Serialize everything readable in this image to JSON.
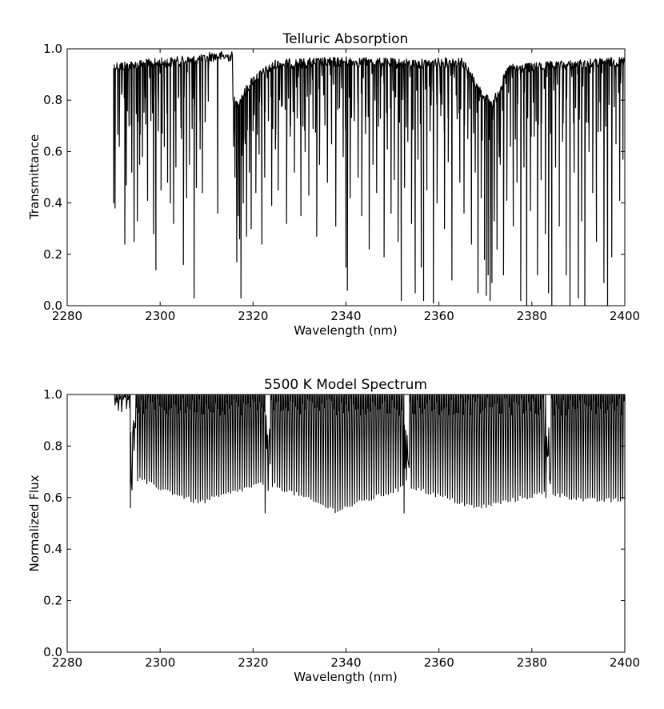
{
  "chart_data": [
    {
      "type": "line",
      "title": "Telluric Absorption",
      "xlabel": "Wavelength (nm)",
      "ylabel": "Transmittance",
      "xlim": [
        2280,
        2400
      ],
      "ylim": [
        0.0,
        1.0
      ],
      "xticks": [
        "2280",
        "2300",
        "2320",
        "2340",
        "2360",
        "2380",
        "2400"
      ],
      "yticks": [
        "0.0",
        "0.2",
        "0.4",
        "0.6",
        "0.8",
        "1.0"
      ],
      "grid": false,
      "line_color": "#000000",
      "series": [
        {
          "continuum": [
            [
              2290.0,
              0.95
            ],
            [
              2310.5,
              0.98
            ],
            [
              2316.5,
              0.8
            ],
            [
              2320.0,
              0.9
            ],
            [
              2325.0,
              0.96
            ],
            [
              2340.0,
              0.97
            ],
            [
              2355.0,
              0.96
            ],
            [
              2365.0,
              0.97
            ],
            [
              2369.0,
              0.85
            ],
            [
              2371.5,
              0.8
            ],
            [
              2375.0,
              0.94
            ],
            [
              2400.0,
              0.97
            ]
          ],
          "lines": [
            [
              2290.0,
              0.4
            ],
            [
              2290.3,
              0.38
            ],
            [
              2291.2,
              0.62
            ],
            [
              2291.8,
              0.83
            ],
            [
              2292.4,
              0.24
            ],
            [
              2292.7,
              0.47
            ],
            [
              2293.3,
              0.7
            ],
            [
              2293.9,
              0.52
            ],
            [
              2294.4,
              0.25
            ],
            [
              2295.1,
              0.33
            ],
            [
              2295.6,
              0.55
            ],
            [
              2296.2,
              0.58
            ],
            [
              2296.8,
              0.81
            ],
            [
              2297.3,
              0.41
            ],
            [
              2298.0,
              0.72
            ],
            [
              2298.6,
              0.28
            ],
            [
              2299.1,
              0.14
            ],
            [
              2299.6,
              0.68
            ],
            [
              2300.2,
              0.45
            ],
            [
              2300.9,
              0.62
            ],
            [
              2301.6,
              0.48
            ],
            [
              2302.2,
              0.4
            ],
            [
              2302.9,
              0.32
            ],
            [
              2303.4,
              0.54
            ],
            [
              2304.0,
              0.82
            ],
            [
              2304.6,
              0.65
            ],
            [
              2305.0,
              0.16
            ],
            [
              2305.7,
              0.42
            ],
            [
              2306.3,
              0.55
            ],
            [
              2306.9,
              0.69
            ],
            [
              2307.3,
              0.03
            ],
            [
              2307.8,
              0.46
            ],
            [
              2308.6,
              0.61
            ],
            [
              2309.1,
              0.44
            ],
            [
              2309.7,
              0.72
            ],
            [
              2310.4,
              0.92
            ],
            [
              2312.4,
              0.36
            ],
            [
              2315.8,
              0.62
            ],
            [
              2316.1,
              0.5
            ],
            [
              2316.5,
              0.17
            ],
            [
              2316.8,
              0.35
            ],
            [
              2317.1,
              0.26
            ],
            [
              2317.4,
              0.03
            ],
            [
              2317.9,
              0.4
            ],
            [
              2318.3,
              0.63
            ],
            [
              2318.6,
              0.27
            ],
            [
              2319.2,
              0.52
            ],
            [
              2319.6,
              0.3
            ],
            [
              2320.0,
              0.68
            ],
            [
              2320.6,
              0.44
            ],
            [
              2321.3,
              0.59
            ],
            [
              2321.9,
              0.24
            ],
            [
              2322.5,
              0.5
            ],
            [
              2323.3,
              0.72
            ],
            [
              2324.0,
              0.39
            ],
            [
              2324.8,
              0.61
            ],
            [
              2325.4,
              0.45
            ],
            [
              2326.3,
              0.78
            ],
            [
              2327.2,
              0.32
            ],
            [
              2328.0,
              0.66
            ],
            [
              2328.9,
              0.52
            ],
            [
              2329.5,
              0.73
            ],
            [
              2330.3,
              0.35
            ],
            [
              2331.2,
              0.6
            ],
            [
              2332.0,
              0.43
            ],
            [
              2332.9,
              0.69
            ],
            [
              2333.7,
              0.27
            ],
            [
              2334.3,
              0.55
            ],
            [
              2335.2,
              0.82
            ],
            [
              2336.0,
              0.48
            ],
            [
              2336.9,
              0.63
            ],
            [
              2337.8,
              0.31
            ],
            [
              2338.6,
              0.77
            ],
            [
              2339.4,
              0.58
            ],
            [
              2340.0,
              0.15
            ],
            [
              2340.3,
              0.06
            ],
            [
              2340.9,
              0.42
            ],
            [
              2341.8,
              0.72
            ],
            [
              2342.6,
              0.5
            ],
            [
              2343.4,
              0.35
            ],
            [
              2344.2,
              0.67
            ],
            [
              2345.0,
              0.22
            ],
            [
              2345.8,
              0.55
            ],
            [
              2346.6,
              0.44
            ],
            [
              2347.4,
              0.73
            ],
            [
              2348.2,
              0.19
            ],
            [
              2348.9,
              0.61
            ],
            [
              2349.7,
              0.36
            ],
            [
              2350.4,
              0.49
            ],
            [
              2351.2,
              0.25
            ],
            [
              2351.9,
              0.02
            ],
            [
              2352.6,
              0.46
            ],
            [
              2353.3,
              0.64
            ],
            [
              2354.1,
              0.32
            ],
            [
              2354.9,
              0.05
            ],
            [
              2355.5,
              0.57
            ],
            [
              2356.2,
              0.15
            ],
            [
              2356.7,
              0.02
            ],
            [
              2357.4,
              0.45
            ],
            [
              2358.1,
              0.68
            ],
            [
              2358.8,
              0.01
            ],
            [
              2359.6,
              0.4
            ],
            [
              2360.4,
              0.74
            ],
            [
              2361.2,
              0.3
            ],
            [
              2362.0,
              0.56
            ],
            [
              2362.8,
              0.1
            ],
            [
              2363.7,
              0.82
            ],
            [
              2364.5,
              0.48
            ],
            [
              2365.4,
              0.36
            ],
            [
              2366.2,
              0.65
            ],
            [
              2367.0,
              0.24
            ],
            [
              2367.8,
              0.52
            ],
            [
              2368.4,
              0.05
            ],
            [
              2369.1,
              0.42
            ],
            [
              2369.8,
              0.18
            ],
            [
              2370.2,
              0.04
            ],
            [
              2370.6,
              0.12
            ],
            [
              2371.0,
              0.02
            ],
            [
              2371.4,
              0.09
            ],
            [
              2371.9,
              0.33
            ],
            [
              2372.5,
              0.22
            ],
            [
              2373.2,
              0.55
            ],
            [
              2373.9,
              0.12
            ],
            [
              2374.6,
              0.41
            ],
            [
              2375.4,
              0.62
            ],
            [
              2376.0,
              0.31
            ],
            [
              2376.8,
              0.48
            ],
            [
              2377.6,
              0.02
            ],
            [
              2378.3,
              0.54
            ],
            [
              2378.9,
              0.0
            ],
            [
              2379.7,
              0.37
            ],
            [
              2380.5,
              0.66
            ],
            [
              2381.2,
              0.12
            ],
            [
              2382.0,
              0.49
            ],
            [
              2382.9,
              0.28
            ],
            [
              2383.6,
              0.05
            ],
            [
              2384.3,
              0.0
            ],
            [
              2385.1,
              0.54
            ],
            [
              2385.9,
              0.31
            ],
            [
              2386.6,
              0.64
            ],
            [
              2387.4,
              0.12
            ],
            [
              2388.2,
              0.0
            ],
            [
              2389.1,
              0.52
            ],
            [
              2390.0,
              0.03
            ],
            [
              2390.7,
              0.33
            ],
            [
              2391.4,
              0.0
            ],
            [
              2392.3,
              0.6
            ],
            [
              2393.1,
              0.44
            ],
            [
              2393.9,
              0.25
            ],
            [
              2394.8,
              0.68
            ],
            [
              2395.5,
              0.09
            ],
            [
              2396.3,
              0.0
            ],
            [
              2397.2,
              0.19
            ],
            [
              2398.1,
              0.63
            ],
            [
              2398.9,
              0.41
            ],
            [
              2399.6,
              0.57
            ]
          ]
        }
      ]
    },
    {
      "type": "line",
      "title": "5500 K Model Spectrum",
      "xlabel": "Wavelength (nm)",
      "ylabel": "Normalized Flux",
      "xlim": [
        2280,
        2400
      ],
      "ylim": [
        0.0,
        1.0
      ],
      "xticks": [
        "2280",
        "2300",
        "2320",
        "2340",
        "2360",
        "2380",
        "2400"
      ],
      "yticks": [
        "0.0",
        "0.2",
        "0.4",
        "0.6",
        "0.8",
        "1.0"
      ],
      "grid": false,
      "line_color": "#000000",
      "series": [
        {
          "flux_start": 2290.0,
          "bands": [
            {
              "head": 2293.6,
              "head_depth": 0.56,
              "end": 2322.4,
              "spacing": 0.5,
              "min_mid": 0.58,
              "min_head": 0.68,
              "min_end": 0.66
            },
            {
              "head": 2322.6,
              "head_depth": 0.54,
              "end": 2352.3,
              "spacing": 0.52,
              "min_mid": 0.55,
              "min_head": 0.66,
              "min_end": 0.64
            },
            {
              "head": 2352.5,
              "head_depth": 0.54,
              "end": 2382.8,
              "spacing": 0.52,
              "min_mid": 0.56,
              "min_head": 0.65,
              "min_end": 0.62
            },
            {
              "head": 2383.0,
              "head_depth": 0.6,
              "end": 2400.0,
              "spacing": 0.5,
              "min_mid": 0.59,
              "min_head": 0.62,
              "min_end": 0.59
            }
          ]
        }
      ]
    }
  ]
}
